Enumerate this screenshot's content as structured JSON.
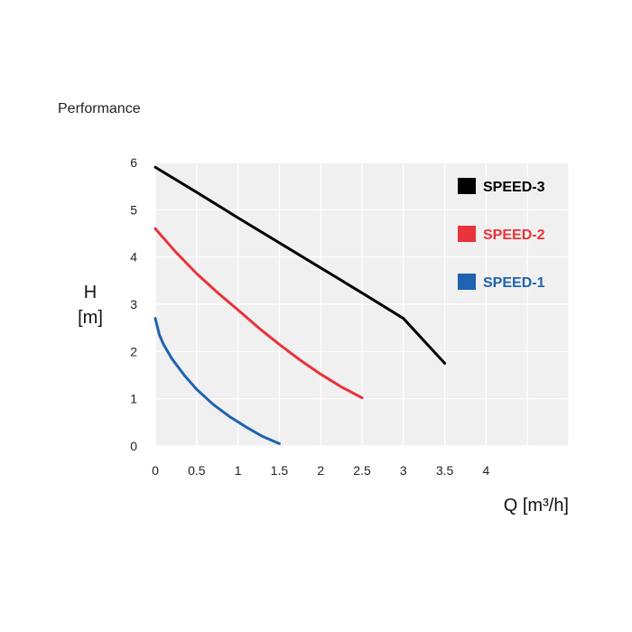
{
  "page_title": "Performance",
  "chart_data": {
    "type": "line",
    "title": "",
    "ylabel_line1": "H",
    "ylabel_line2": "[m]",
    "xlabel": "Q [m³/h]",
    "xlim": [
      0,
      5
    ],
    "ylim": [
      0,
      6
    ],
    "x_ticks": [
      0,
      0.5,
      1,
      1.5,
      2,
      2.5,
      3,
      3.5,
      4
    ],
    "x_tick_labels": [
      "0",
      "0.5",
      "1",
      "1.5",
      "2",
      "2.5",
      "3",
      "3.5",
      "4"
    ],
    "y_ticks": [
      0,
      1,
      2,
      3,
      4,
      5,
      6
    ],
    "y_tick_labels": [
      "0",
      "1",
      "2",
      "3",
      "4",
      "5",
      "6"
    ],
    "grid": true,
    "legend_position": "top-right",
    "series": [
      {
        "name": "SPEED-3",
        "color": "#000000",
        "x": [
          0,
          0.5,
          1,
          1.5,
          2,
          2.5,
          3,
          3.5
        ],
        "y": [
          5.9,
          5.37,
          4.83,
          4.3,
          3.77,
          3.24,
          2.7,
          1.75
        ]
      },
      {
        "name": "SPEED-2",
        "color": "#e8333a",
        "x": [
          0,
          0.25,
          0.5,
          0.75,
          1,
          1.25,
          1.5,
          1.75,
          2,
          2.25,
          2.5
        ],
        "y": [
          4.6,
          4.1,
          3.65,
          3.25,
          2.88,
          2.5,
          2.15,
          1.82,
          1.52,
          1.25,
          1.02
        ]
      },
      {
        "name": "SPEED-1",
        "color": "#1f63b0",
        "x": [
          0,
          0.05,
          0.1,
          0.2,
          0.35,
          0.5,
          0.7,
          0.9,
          1.1,
          1.3,
          1.5
        ],
        "y": [
          2.7,
          2.35,
          2.15,
          1.85,
          1.5,
          1.2,
          0.88,
          0.62,
          0.4,
          0.2,
          0.05
        ]
      }
    ]
  }
}
